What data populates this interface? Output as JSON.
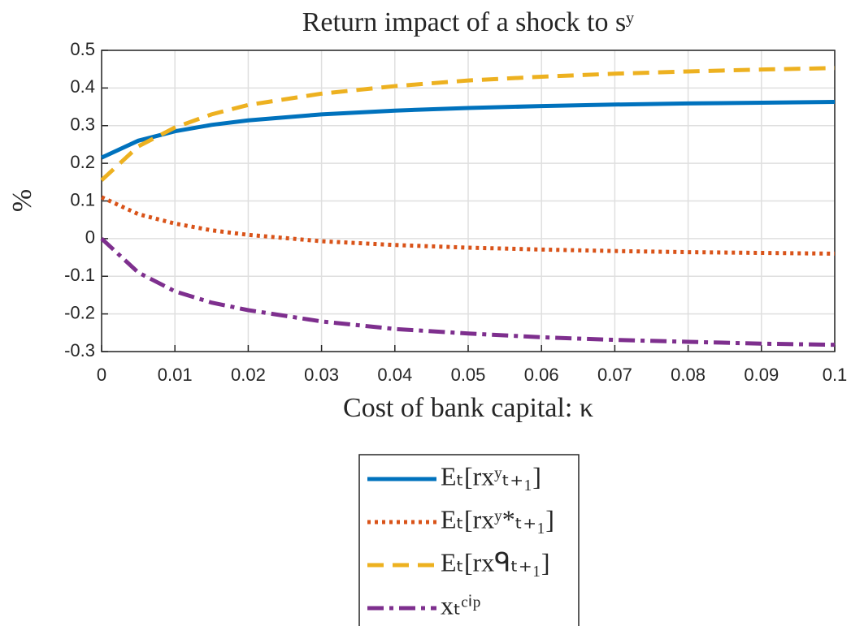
{
  "chart_data": {
    "type": "line",
    "title": "Return impact of a shock to sʸ",
    "x_label": "Cost of bank capital: κ",
    "y_label": "%",
    "x": [
      0,
      0.005,
      0.01,
      0.015,
      0.02,
      0.03,
      0.04,
      0.05,
      0.06,
      0.07,
      0.08,
      0.09,
      0.1
    ],
    "series": [
      {
        "name": "Eₜ[rxʸₜ₊₁]",
        "color": "#0072bd",
        "style": "solid",
        "values": [
          0.215,
          0.26,
          0.285,
          0.302,
          0.314,
          0.33,
          0.34,
          0.347,
          0.352,
          0.356,
          0.359,
          0.361,
          0.363
        ]
      },
      {
        "name": "Eₜ[rxʸ*ₜ₊₁]",
        "color": "#d95319",
        "style": "dotted",
        "values": [
          0.11,
          0.065,
          0.04,
          0.022,
          0.01,
          -0.007,
          -0.017,
          -0.024,
          -0.029,
          -0.033,
          -0.036,
          -0.038,
          -0.04
        ]
      },
      {
        "name": "Eₜ[rxᑫₜ₊₁]",
        "color": "#edb120",
        "style": "dashed",
        "values": [
          0.155,
          0.245,
          0.295,
          0.33,
          0.355,
          0.385,
          0.405,
          0.42,
          0.43,
          0.438,
          0.444,
          0.449,
          0.453
        ]
      },
      {
        "name": "xₜᶜⁱᵖ",
        "color": "#7e2f8e",
        "style": "dashdot",
        "values": [
          0,
          -0.09,
          -0.14,
          -0.17,
          -0.19,
          -0.22,
          -0.24,
          -0.252,
          -0.262,
          -0.269,
          -0.274,
          -0.279,
          -0.282
        ]
      }
    ],
    "xlim": [
      0,
      0.1
    ],
    "xticks": [
      0,
      0.01,
      0.02,
      0.03,
      0.04,
      0.05,
      0.06,
      0.07,
      0.08,
      0.09,
      0.1
    ],
    "ylim": [
      -0.3,
      0.5
    ],
    "yticks": [
      -0.3,
      -0.2,
      -0.1,
      0,
      0.1,
      0.2,
      0.3,
      0.4,
      0.5
    ],
    "grid": true,
    "legend": "below"
  }
}
